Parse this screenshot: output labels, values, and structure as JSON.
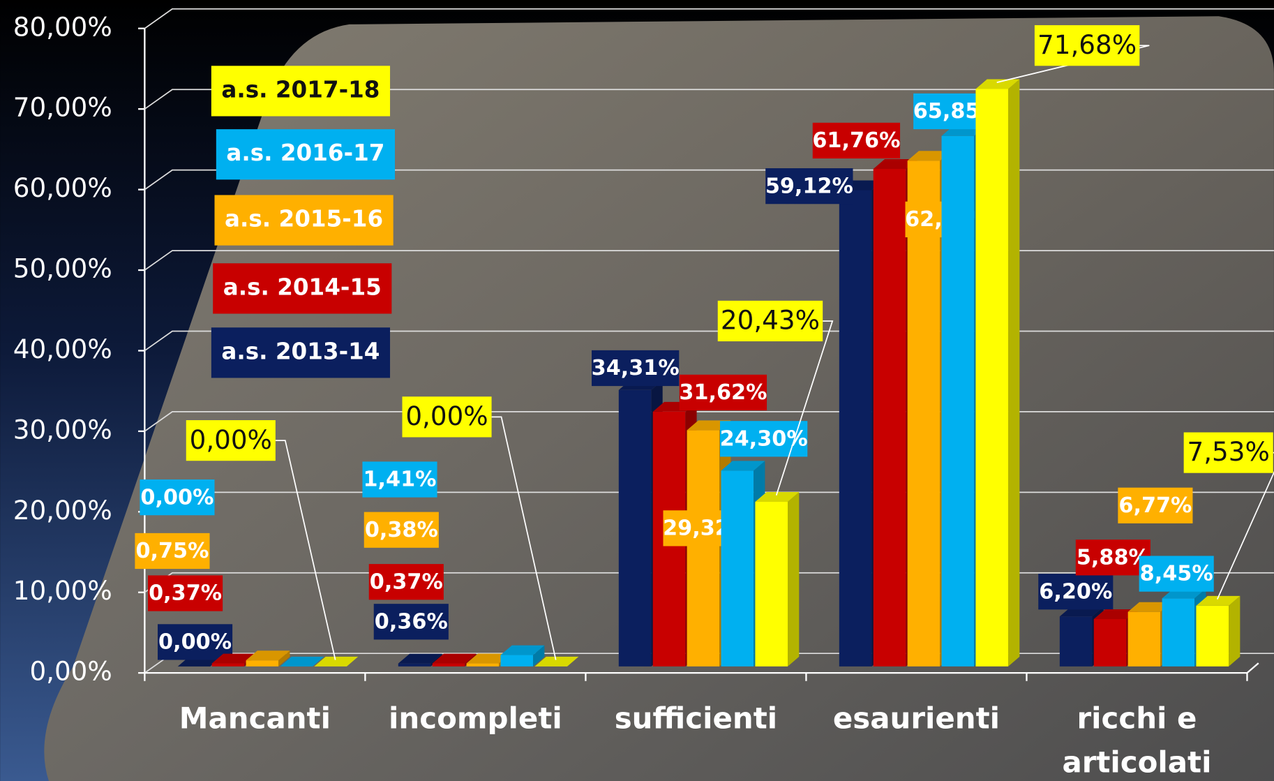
{
  "chart_data": {
    "type": "bar",
    "categories": [
      "Mancanti",
      "incompleti",
      "sufficienti",
      "esaurienti",
      "ricchi e articolati"
    ],
    "series": [
      {
        "name": "a.s. 2013-14",
        "color": "#0b1f5e",
        "values": [
          0.0,
          0.36,
          34.31,
          59.12,
          6.2
        ],
        "value_labels": [
          "0,00%",
          "0,36%",
          "34,31%",
          "59,12%",
          "6,20%"
        ]
      },
      {
        "name": "a.s. 2014-15",
        "color": "#c80000",
        "values": [
          0.37,
          0.37,
          31.62,
          61.76,
          5.88
        ],
        "value_labels": [
          "0,37%",
          "0,37%",
          "31,62%",
          "61,76%",
          "5,88%"
        ]
      },
      {
        "name": "a.s. 2015-16",
        "color": "#ffb000",
        "values": [
          0.75,
          0.38,
          29.32,
          62.78,
          6.77
        ],
        "value_labels": [
          "0,75%",
          "0,38%",
          "29,32%",
          "62,78%",
          "6,77%"
        ]
      },
      {
        "name": "a.s. 2016-17",
        "color": "#00b0f0",
        "values": [
          0.0,
          1.41,
          24.3,
          65.85,
          8.45
        ],
        "value_labels": [
          "0,00%",
          "1,41%",
          "24,30%",
          "65,85%",
          "8,45%"
        ]
      },
      {
        "name": "a.s. 2017-18",
        "color": "#ffff00",
        "values": [
          0.0,
          0.0,
          20.43,
          71.68,
          7.53
        ],
        "value_labels": [
          "0,00%",
          "0,00%",
          "20,43%",
          "71,68%",
          "7,53%"
        ]
      }
    ],
    "ylim": [
      0,
      80
    ],
    "yticks": [
      {
        "value": 0,
        "label": "0,00%"
      },
      {
        "value": 10,
        "label": "10,00%"
      },
      {
        "value": 20,
        "label": "20,00%"
      },
      {
        "value": 30,
        "label": "30,00%"
      },
      {
        "value": 40,
        "label": "40,00%"
      },
      {
        "value": 50,
        "label": "50,00%"
      },
      {
        "value": 60,
        "label": "60,00%"
      },
      {
        "value": 70,
        "label": "70,00%"
      },
      {
        "value": 80,
        "label": "80,00%"
      }
    ],
    "grid": true
  }
}
